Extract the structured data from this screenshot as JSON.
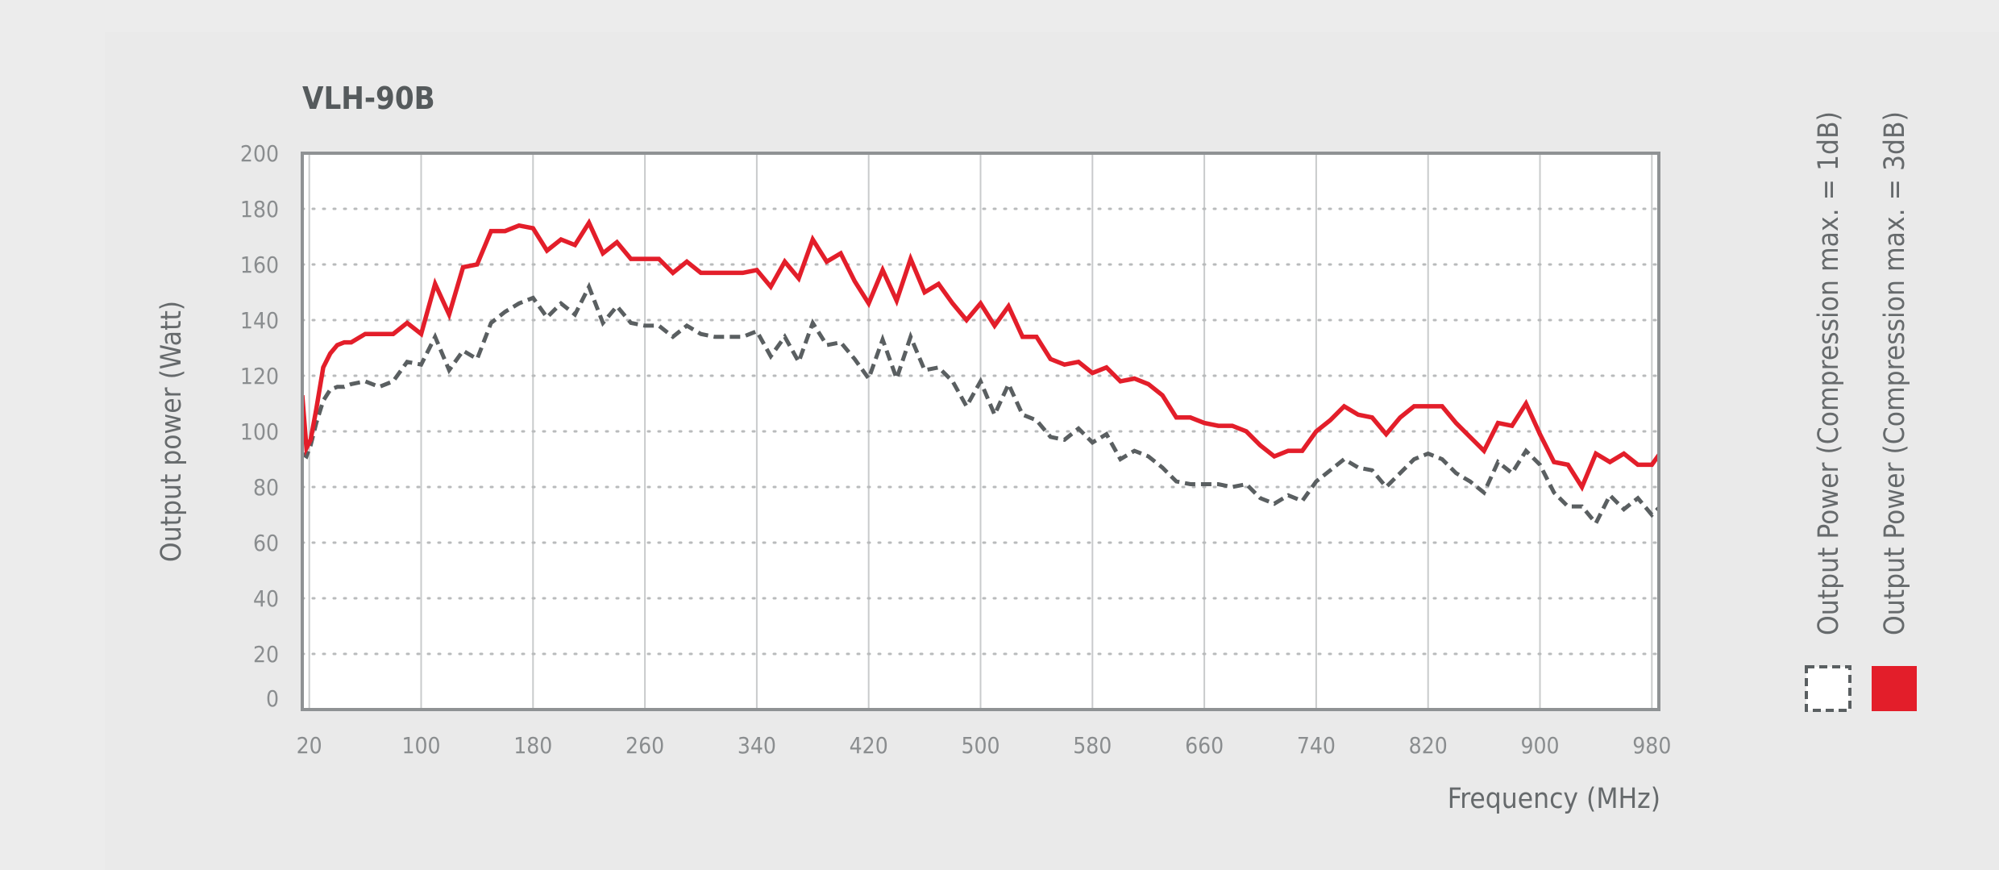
{
  "chart_data": {
    "type": "line",
    "title": "VLH-90B",
    "xlabel": "Frequency (MHz)",
    "ylabel": "Output power (Watt)",
    "xlim": [
      15,
      985
    ],
    "ylim": [
      0,
      200
    ],
    "x_ticks": [
      20,
      100,
      180,
      260,
      340,
      420,
      500,
      580,
      660,
      740,
      820,
      900,
      980
    ],
    "y_ticks": [
      0,
      20,
      40,
      60,
      80,
      100,
      120,
      140,
      160,
      180,
      200
    ],
    "grid": true,
    "legend_position": "right",
    "series": [
      {
        "name": "Output Power (Compression max. = 1dB)",
        "color": "#5a5f61",
        "style": "dashed",
        "x": [
          15,
          18,
          21,
          25,
          30,
          35,
          40,
          45,
          50,
          60,
          70,
          80,
          90,
          100,
          110,
          120,
          130,
          140,
          150,
          160,
          170,
          180,
          190,
          200,
          210,
          220,
          230,
          240,
          250,
          260,
          270,
          280,
          290,
          300,
          310,
          320,
          330,
          340,
          350,
          360,
          370,
          380,
          390,
          400,
          410,
          420,
          430,
          440,
          450,
          460,
          470,
          480,
          490,
          500,
          510,
          520,
          530,
          540,
          550,
          560,
          570,
          580,
          590,
          600,
          610,
          620,
          630,
          640,
          650,
          660,
          670,
          680,
          690,
          700,
          710,
          720,
          730,
          740,
          750,
          760,
          770,
          780,
          790,
          800,
          810,
          820,
          830,
          840,
          850,
          860,
          870,
          880,
          890,
          900,
          910,
          920,
          930,
          940,
          950,
          960,
          970,
          980,
          990
        ],
        "values": [
          92,
          91,
          95,
          103,
          111,
          115,
          116,
          116,
          117,
          118,
          116,
          118,
          125,
          124,
          134,
          122,
          129,
          126,
          139,
          143,
          146,
          148,
          141,
          146,
          142,
          152,
          139,
          145,
          139,
          138,
          138,
          134,
          138,
          135,
          134,
          134,
          134,
          136,
          127,
          134,
          125,
          139,
          131,
          132,
          126,
          119,
          133,
          119,
          134,
          122,
          123,
          118,
          109,
          118,
          106,
          117,
          106,
          104,
          98,
          97,
          101,
          96,
          99,
          90,
          93,
          91,
          87,
          82,
          81,
          81,
          81,
          80,
          81,
          76,
          74,
          77,
          75,
          82,
          86,
          90,
          87,
          86,
          80,
          85,
          90,
          92,
          90,
          85,
          82,
          78,
          89,
          85,
          93,
          88,
          78,
          73,
          73,
          67,
          77,
          72,
          76,
          70,
          75
        ]
      },
      {
        "name": "Output Power (Compression max. = 3dB)",
        "color": "#e31e2a",
        "style": "solid",
        "x": [
          15,
          18,
          21,
          25,
          30,
          35,
          40,
          45,
          50,
          60,
          70,
          80,
          90,
          100,
          110,
          120,
          130,
          140,
          150,
          160,
          170,
          180,
          190,
          200,
          210,
          220,
          230,
          240,
          250,
          260,
          270,
          280,
          290,
          300,
          310,
          320,
          330,
          340,
          350,
          360,
          370,
          380,
          390,
          400,
          410,
          420,
          430,
          440,
          450,
          460,
          470,
          480,
          490,
          500,
          510,
          520,
          530,
          540,
          550,
          560,
          570,
          580,
          590,
          600,
          610,
          620,
          630,
          640,
          650,
          660,
          670,
          680,
          690,
          700,
          710,
          720,
          730,
          740,
          750,
          760,
          770,
          780,
          790,
          800,
          810,
          820,
          830,
          840,
          850,
          860,
          870,
          880,
          890,
          900,
          910,
          920,
          930,
          940,
          950,
          960,
          970,
          980,
          990
        ],
        "values": [
          113,
          94,
          97,
          108,
          123,
          128,
          131,
          132,
          132,
          135,
          135,
          135,
          139,
          135,
          153,
          142,
          159,
          160,
          172,
          172,
          174,
          173,
          165,
          169,
          167,
          175,
          164,
          168,
          162,
          162,
          162,
          157,
          161,
          157,
          157,
          157,
          157,
          158,
          152,
          161,
          155,
          169,
          161,
          164,
          154,
          146,
          158,
          147,
          162,
          150,
          153,
          146,
          140,
          146,
          138,
          145,
          134,
          134,
          126,
          124,
          125,
          121,
          123,
          118,
          119,
          117,
          113,
          105,
          105,
          103,
          102,
          102,
          100,
          95,
          91,
          93,
          93,
          100,
          104,
          109,
          106,
          105,
          99,
          105,
          109,
          109,
          109,
          103,
          98,
          93,
          103,
          102,
          110,
          99,
          89,
          88,
          80,
          92,
          89,
          92,
          88,
          88,
          95
        ]
      }
    ]
  }
}
